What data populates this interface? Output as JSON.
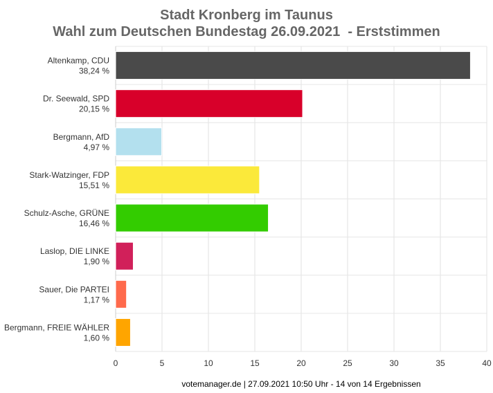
{
  "chart_data": {
    "type": "bar",
    "orientation": "horizontal",
    "title": "Stadt Kronberg im Taunus",
    "subtitle": "Wahl zum Deutschen Bundestag 26.09.2021  - Erststimmen",
    "categories": [
      {
        "name": "Altenkamp, CDU",
        "value_label": "38,24 %"
      },
      {
        "name": "Dr. Seewald, SPD",
        "value_label": "20,15 %"
      },
      {
        "name": "Bergmann, AfD",
        "value_label": "4,97 %"
      },
      {
        "name": "Stark-Watzinger, FDP",
        "value_label": "15,51 %"
      },
      {
        "name": "Schulz-Asche, GRÜNE",
        "value_label": "16,46 %"
      },
      {
        "name": "Laslop, DIE LINKE",
        "value_label": "1,90 %"
      },
      {
        "name": "Sauer, Die PARTEI",
        "value_label": "1,17 %"
      },
      {
        "name": "Bergmann, FREIE WÄHLER",
        "value_label": "1,60 %"
      }
    ],
    "values": [
      38.24,
      20.15,
      4.97,
      15.51,
      16.46,
      1.9,
      1.17,
      1.6
    ],
    "colors": [
      "#4a4a4a",
      "#d8002a",
      "#b3e0ee",
      "#fbe93a",
      "#33cc00",
      "#d1205a",
      "#ff6a4c",
      "#ffa500"
    ],
    "xlim": [
      0,
      40
    ],
    "xticks": [
      "0",
      "5",
      "10",
      "15",
      "20",
      "25",
      "30",
      "35",
      "40"
    ],
    "grid": true,
    "footer": "votemanager.de | 27.09.2021 10:50 Uhr - 14 von 14 Ergebnissen"
  }
}
